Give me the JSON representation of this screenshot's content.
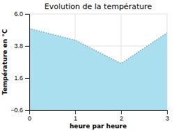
{
  "chart_data": {
    "type": "area",
    "title": "Evolution de la température",
    "x_label": "heure par heure",
    "y_label": "Température en °C",
    "x": [
      0,
      1,
      2,
      3
    ],
    "values": [
      5.0,
      4.2,
      2.6,
      4.7
    ],
    "color": "#aadff0",
    "line_style": "dotted",
    "xlim": [
      0,
      3
    ],
    "ylim": [
      -0.6,
      6.0
    ],
    "xticks": [
      0,
      1,
      2,
      3
    ],
    "yticks": [
      {
        "value": -0.6,
        "label": "−0.6"
      },
      1.6,
      3.8,
      {
        "value": 6.0,
        "label": "6.0"
      }
    ],
    "grid": true
  }
}
